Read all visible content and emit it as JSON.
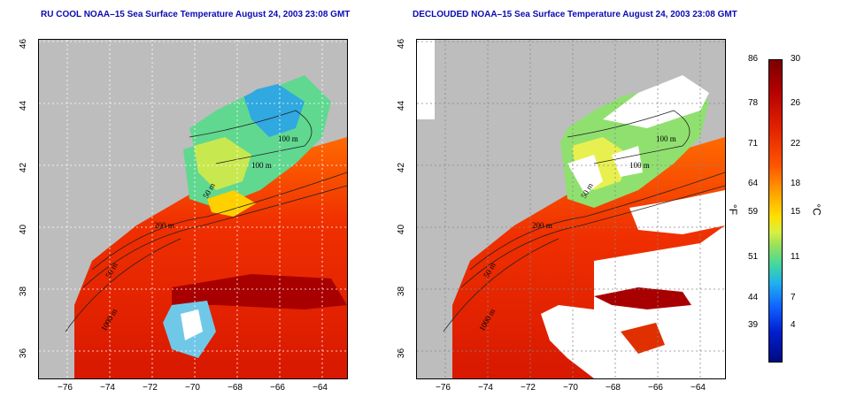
{
  "panels": [
    {
      "title": "RU COOL NOAA–15 Sea Surface Temperature August 24, 2003 23:08 GMT"
    },
    {
      "title": "DECLOUDED NOAA–15 Sea Surface Temperature August 24, 2003 23:08 GMT"
    }
  ],
  "axes": {
    "x_ticks": [
      "−76",
      "−74",
      "−72",
      "−70",
      "−68",
      "−66",
      "−64"
    ],
    "y_ticks": [
      "46",
      "44",
      "42",
      "40",
      "38",
      "36"
    ]
  },
  "contours": [
    "100 m",
    "100 m",
    "50 m",
    "200 m",
    "1000 m",
    "50 m"
  ],
  "colorbar": {
    "fahrenheit": [
      "86",
      "78",
      "71",
      "64",
      "59",
      "51",
      "44",
      "39"
    ],
    "celsius": [
      "30",
      "26",
      "22",
      "18",
      "15",
      "11",
      "7",
      "4"
    ],
    "f_unit": "°F",
    "c_unit": "°C"
  },
  "colors": {
    "title": "#0a0ab4",
    "land": "#bdbdbd",
    "cloud": "#ffffff"
  }
}
